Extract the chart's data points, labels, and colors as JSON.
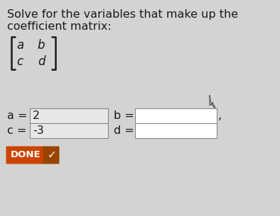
{
  "background_color": "#d3d3d3",
  "title_line1": "Solve for the variables that make up the",
  "title_line2": "coefficient matrix:",
  "text_color": "#1a1a1a",
  "field_a_value": "2",
  "field_c_value": "-3",
  "label_a": "a = ",
  "label_b": "b = ",
  "label_c": "c = ",
  "label_d": "d = ",
  "done_bg": "#cc4400",
  "done_check_bg": "#994400",
  "done_text": "DONE",
  "title_fontsize": 11.5,
  "label_fontsize": 11.5,
  "matrix_fontsize": 12.0
}
